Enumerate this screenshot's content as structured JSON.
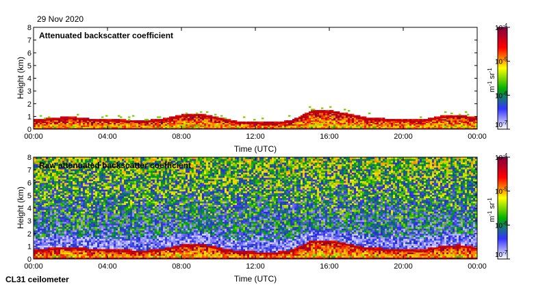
{
  "date_label": "29 Nov 2020",
  "instrument_label": "CL31 ceilometer",
  "chart_data": [
    {
      "type": "heatmap",
      "title": "Attenuated backscatter coefficient",
      "xlabel": "Time (UTC)",
      "ylabel": "Height (km)",
      "xlim": [
        0,
        24
      ],
      "ylim": [
        0,
        8
      ],
      "xticks": [
        "00:00",
        "04:00",
        "08:00",
        "12:00",
        "16:00",
        "20:00",
        "00:00"
      ],
      "yticks": [
        "0",
        "1",
        "2",
        "3",
        "4",
        "5",
        "6",
        "7",
        "8"
      ],
      "colorbar": {
        "scale": "log",
        "range": [
          1e-07,
          0.0001
        ],
        "ticks": [
          "10-7",
          "10-6",
          "10-5",
          "10-4"
        ],
        "units": "m-1 sr-1",
        "colors": [
          "#ffffff",
          "#3333ff",
          "#00b000",
          "#ffff00",
          "#ff0000",
          "#800040"
        ]
      },
      "boundary_layer_top_km": [
        [
          0,
          0.6
        ],
        [
          1,
          0.75
        ],
        [
          2,
          0.85
        ],
        [
          3,
          0.7
        ],
        [
          4,
          0.65
        ],
        [
          5,
          0.6
        ],
        [
          6,
          0.55
        ],
        [
          7,
          0.7
        ],
        [
          8,
          1.0
        ],
        [
          9,
          1.1
        ],
        [
          10,
          0.8
        ],
        [
          11,
          0.5
        ],
        [
          12,
          0.45
        ],
        [
          13,
          0.4
        ],
        [
          14,
          0.6
        ],
        [
          15,
          1.3
        ],
        [
          16,
          1.35
        ],
        [
          17,
          1.1
        ],
        [
          18,
          0.8
        ],
        [
          19,
          0.7
        ],
        [
          20,
          0.65
        ],
        [
          21,
          0.6
        ],
        [
          22,
          0.9
        ],
        [
          23,
          1.0
        ],
        [
          24,
          0.8
        ]
      ]
    },
    {
      "type": "heatmap",
      "title": "Raw attenuated backscatter coefficient",
      "xlabel": "Time (UTC)",
      "ylabel": "Height (km)",
      "xlim": [
        0,
        24
      ],
      "ylim": [
        0,
        8
      ],
      "xticks": [
        "00:00",
        "04:00",
        "08:00",
        "12:00",
        "16:00",
        "20:00",
        "00:00"
      ],
      "yticks": [
        "0",
        "1",
        "2",
        "3",
        "4",
        "5",
        "6",
        "7",
        "8"
      ],
      "colorbar": {
        "scale": "log",
        "range": [
          1e-07,
          0.0001
        ],
        "ticks": [
          "10-7",
          "10-6",
          "10-5",
          "10-4"
        ],
        "units": "m-1 sr-1",
        "colors": [
          "#ffffff",
          "#3333ff",
          "#00b000",
          "#ffff00",
          "#ff0000",
          "#800040"
        ]
      },
      "boundary_layer_top_km": [
        [
          0,
          0.6
        ],
        [
          1,
          0.75
        ],
        [
          2,
          0.85
        ],
        [
          3,
          0.7
        ],
        [
          4,
          0.65
        ],
        [
          5,
          0.6
        ],
        [
          6,
          0.55
        ],
        [
          7,
          0.7
        ],
        [
          8,
          1.0
        ],
        [
          9,
          1.1
        ],
        [
          10,
          0.8
        ],
        [
          11,
          0.5
        ],
        [
          12,
          0.45
        ],
        [
          13,
          0.4
        ],
        [
          14,
          0.6
        ],
        [
          15,
          1.3
        ],
        [
          16,
          1.35
        ],
        [
          17,
          1.1
        ],
        [
          18,
          0.8
        ],
        [
          19,
          0.7
        ],
        [
          20,
          0.65
        ],
        [
          21,
          0.6
        ],
        [
          22,
          0.9
        ],
        [
          23,
          1.0
        ],
        [
          24,
          0.8
        ]
      ],
      "noise_field": true
    }
  ]
}
